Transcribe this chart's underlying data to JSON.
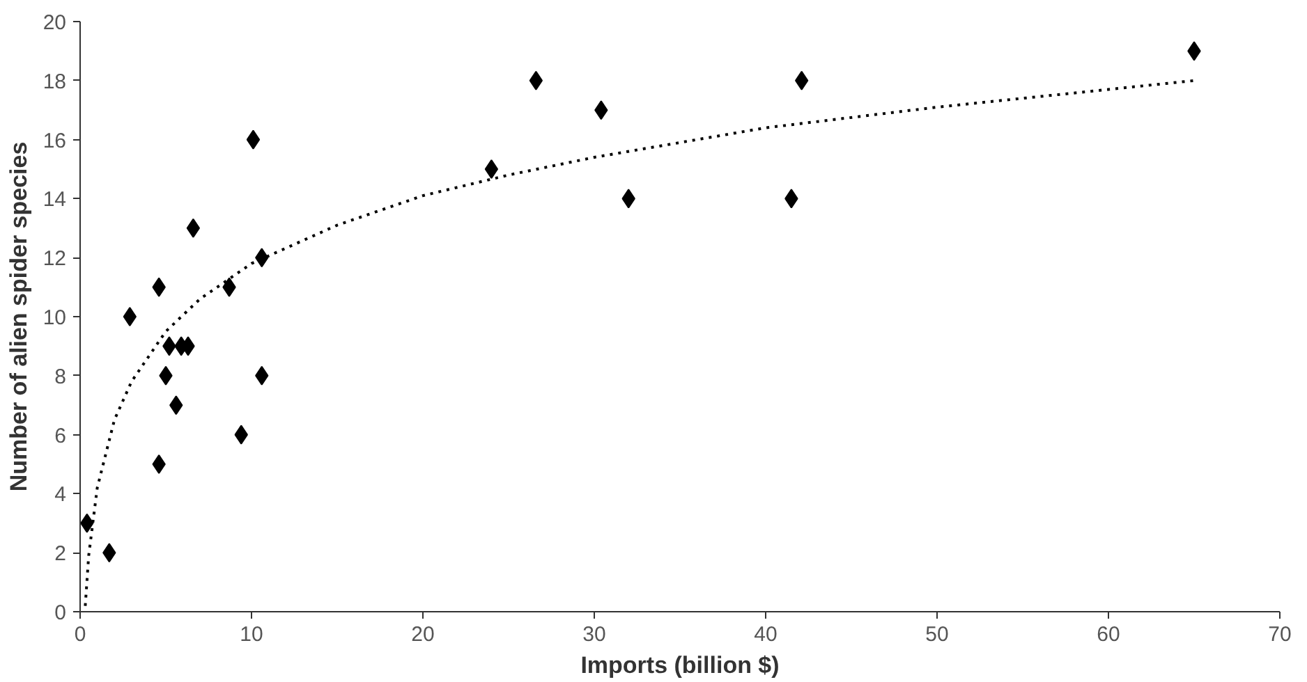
{
  "chart_data": {
    "type": "scatter",
    "xlabel": "Imports (billion $)",
    "ylabel": "Number of alien spider species",
    "xlim": [
      0,
      70
    ],
    "ylim": [
      0,
      20
    ],
    "xticks": [
      0,
      10,
      20,
      30,
      40,
      50,
      60,
      70
    ],
    "yticks": [
      0,
      2,
      4,
      6,
      8,
      10,
      12,
      14,
      16,
      18,
      20
    ],
    "grid": false,
    "series": [
      {
        "color": "#000000",
        "marker": "diamond",
        "x": [
          0.4,
          1.7,
          2.9,
          4.6,
          4.6,
          5.0,
          5.2,
          5.6,
          5.9,
          6.3,
          6.6,
          8.7,
          9.4,
          10.1,
          10.6,
          10.6,
          24.0,
          26.6,
          30.4,
          32.0,
          41.5,
          42.1,
          65.0
        ],
        "values": [
          3,
          2,
          10,
          11,
          5,
          8,
          9,
          7,
          9,
          9,
          13,
          11,
          6,
          16,
          12,
          8,
          15,
          18,
          17,
          14,
          14,
          18,
          19
        ]
      },
      {
        "type": "line",
        "color": "#000000",
        "line_style": "dotted",
        "marker": "none",
        "x": [
          0.3,
          0.5,
          1,
          2,
          3,
          5,
          7,
          10,
          15,
          20,
          25,
          30,
          40,
          50,
          60,
          65
        ],
        "values": [
          0.2,
          1.9,
          4.2,
          6.5,
          7.8,
          9.5,
          10.6,
          11.8,
          13.1,
          14.1,
          14.8,
          15.4,
          16.4,
          17.1,
          17.7,
          18.0
        ]
      }
    ]
  }
}
